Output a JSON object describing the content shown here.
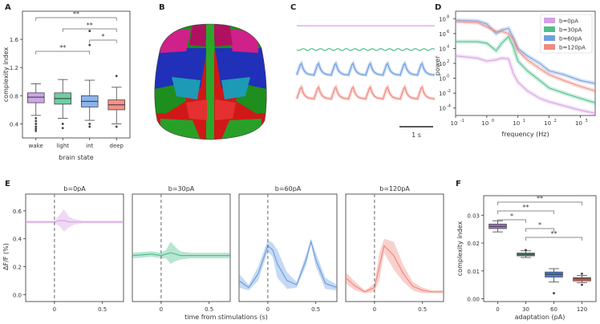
{
  "panel_letters": [
    "A",
    "B",
    "C",
    "D",
    "E",
    "F"
  ],
  "chart_data": [
    {
      "id": "A",
      "type": "box",
      "xlabel": "brain state",
      "ylabel": "complexity index",
      "categories": [
        "wake",
        "light",
        "int",
        "deep"
      ],
      "ylim": [
        0.2,
        2.0
      ],
      "yticks": [
        "0.4",
        "0.8",
        "1.2",
        "1.6"
      ],
      "colors": [
        "#cfa6e8",
        "#6fcfa2",
        "#8bb4ec",
        "#f5908a"
      ],
      "boxes": [
        {
          "q1": 0.7,
          "median": 0.78,
          "q3": 0.84,
          "whislo": 0.52,
          "whishi": 0.97,
          "outliers": [
            0.48,
            0.44,
            0.4,
            0.36,
            0.33,
            0.3
          ]
        },
        {
          "q1": 0.68,
          "median": 0.76,
          "q3": 0.84,
          "whislo": 0.48,
          "whishi": 1.03,
          "outliers": [
            0.4,
            0.34
          ]
        },
        {
          "q1": 0.64,
          "median": 0.72,
          "q3": 0.8,
          "whislo": 0.45,
          "whishi": 1.02,
          "outliers": [
            1.72,
            1.52,
            0.4,
            0.36
          ]
        },
        {
          "q1": 0.6,
          "median": 0.67,
          "q3": 0.74,
          "whislo": 0.4,
          "whishi": 0.92,
          "outliers": [
            1.08,
            0.36
          ]
        }
      ],
      "significance": [
        {
          "from": "wake",
          "to": "deep",
          "label": "**"
        },
        {
          "from": "light",
          "to": "deep",
          "label": "**"
        },
        {
          "from": "int",
          "to": "deep",
          "label": "*"
        },
        {
          "from": "wake",
          "to": "int",
          "label": "**"
        }
      ]
    },
    {
      "id": "C",
      "type": "line",
      "series": [
        {
          "color": "#d6a0e6",
          "pattern": "flat",
          "level": 0.02
        },
        {
          "color": "#4fbf8c",
          "pattern": "small_oscillation",
          "level": 0.3
        },
        {
          "color": "#6f9fe0",
          "pattern": "spiking",
          "level": 0.6
        },
        {
          "color": "#f08a80",
          "pattern": "spiking",
          "level": 0.88
        }
      ],
      "peaks": 8,
      "scalebar_label": "1 s"
    },
    {
      "id": "D",
      "type": "line",
      "log_x": true,
      "log_y": true,
      "xlabel": "frequency (Hz)",
      "ylabel": "power",
      "xticks": [
        "10$^{-1}$",
        "10$^{0}$",
        "10$^{1}$",
        "10$^{2}$",
        "10$^{3}$"
      ],
      "xtick_base": [
        "10",
        "10",
        "10",
        "10",
        "10"
      ],
      "xtick_exp": [
        "-1",
        "0",
        "1",
        "2",
        "3"
      ],
      "ytick_base": [
        "10",
        "10",
        "10",
        "10",
        "10",
        "10",
        "10"
      ],
      "ytick_exp": [
        "8",
        "6",
        "4",
        "2",
        "0",
        "-2",
        "-4"
      ],
      "xlim": [
        0.1,
        3000
      ],
      "ylim": [
        1e-05,
        1000000000
      ],
      "legend_position": "top-right",
      "series": [
        {
          "name": "b=0pA",
          "color": "#d6a0e6",
          "x": [
            0.1,
            0.5,
            1,
            2,
            3,
            5,
            7,
            10,
            20,
            50,
            100,
            300,
            1000,
            3000
          ],
          "y": [
            1000,
            500,
            200,
            300,
            500,
            400,
            5,
            0.3,
            0.02,
            0.002,
            0.0007,
            0.0002,
            5e-05,
            2e-05
          ]
        },
        {
          "name": "b=30pA",
          "color": "#4fbf8c",
          "x": [
            0.1,
            0.5,
            1,
            2,
            3,
            5,
            7,
            10,
            20,
            50,
            100,
            300,
            1000,
            3000
          ],
          "y": [
            80000,
            80000,
            50000,
            5000,
            50000,
            400000,
            20000,
            200,
            10,
            0.5,
            0.05,
            0.01,
            0.002,
            0.0005
          ]
        },
        {
          "name": "b=60pA",
          "color": "#6f9fe0",
          "x": [
            0.1,
            0.5,
            1,
            2,
            3,
            5,
            7,
            10,
            20,
            50,
            100,
            300,
            1000,
            3000
          ],
          "y": [
            60000000,
            50000000,
            20000000,
            1000000,
            3000000,
            5000000,
            300000,
            10000,
            1000,
            100,
            10,
            3,
            0.5,
            0.2
          ]
        },
        {
          "name": "b=120pA",
          "color": "#f08a80",
          "x": [
            0.1,
            0.5,
            1,
            2,
            3,
            5,
            7,
            10,
            20,
            50,
            100,
            300,
            1000,
            3000
          ],
          "y": [
            40000000,
            30000000,
            8000000,
            2000000,
            2000000,
            1000000,
            200000,
            5000,
            300,
            20,
            3,
            0.5,
            0.08,
            0.02
          ]
        }
      ]
    },
    {
      "id": "E",
      "type": "line",
      "xlabel": "time from stimulations (s)",
      "ylabel": "ΔF/F (%)",
      "ylim": [
        -0.05,
        0.72
      ],
      "yticks": [
        "0.0",
        "0.2",
        "0.4",
        "0.6"
      ],
      "xlim": [
        -0.3,
        0.72
      ],
      "xticks": [
        "0",
        "0.5"
      ],
      "subplots": [
        {
          "title": "b=0pA",
          "color": "#d6a0e6",
          "x": [
            -0.3,
            0,
            0.05,
            0.1,
            0.15,
            0.2,
            0.3,
            0.5,
            0.72
          ],
          "y": [
            0.52,
            0.52,
            0.53,
            0.53,
            0.52,
            0.52,
            0.52,
            0.52,
            0.52
          ],
          "spread": [
            0.01,
            0.01,
            0.04,
            0.08,
            0.04,
            0.02,
            0.01,
            0.01,
            0.01
          ]
        },
        {
          "title": "b=30pA",
          "color": "#4fbf8c",
          "x": [
            -0.3,
            -0.1,
            0,
            0.05,
            0.1,
            0.15,
            0.2,
            0.3,
            0.5,
            0.72
          ],
          "y": [
            0.28,
            0.29,
            0.28,
            0.29,
            0.3,
            0.29,
            0.28,
            0.28,
            0.28,
            0.28
          ],
          "spread": [
            0.02,
            0.02,
            0.02,
            0.03,
            0.08,
            0.05,
            0.03,
            0.02,
            0.02,
            0.02
          ]
        },
        {
          "title": "b=60pA",
          "color": "#6f9fe0",
          "x": [
            -0.3,
            -0.2,
            -0.1,
            0,
            0.05,
            0.1,
            0.2,
            0.3,
            0.4,
            0.45,
            0.5,
            0.6,
            0.72
          ],
          "y": [
            0.1,
            0.05,
            0.15,
            0.35,
            0.32,
            0.22,
            0.1,
            0.07,
            0.25,
            0.38,
            0.25,
            0.08,
            0.05
          ],
          "spread": [
            0.05,
            0.02,
            0.05,
            0.04,
            0.05,
            0.1,
            0.06,
            0.02,
            0.04,
            0.02,
            0.05,
            0.04,
            0.02
          ]
        },
        {
          "title": "b=120pA",
          "color": "#f08a80",
          "x": [
            -0.3,
            -0.2,
            -0.1,
            0,
            0.05,
            0.1,
            0.2,
            0.3,
            0.4,
            0.5,
            0.6,
            0.72
          ],
          "y": [
            0.12,
            0.06,
            0.02,
            0.05,
            0.2,
            0.35,
            0.28,
            0.15,
            0.06,
            0.03,
            0.02,
            0.02
          ],
          "spread": [
            0.04,
            0.03,
            0.01,
            0.03,
            0.1,
            0.05,
            0.1,
            0.06,
            0.03,
            0.02,
            0.01,
            0.01
          ]
        }
      ]
    },
    {
      "id": "F",
      "type": "box",
      "xlabel": "adaptation (pA)",
      "ylabel": "complexity index",
      "categories": [
        "0",
        "30",
        "60",
        "120"
      ],
      "ylim": [
        -0.001,
        0.037
      ],
      "yticks": [
        "0.00",
        "0.01",
        "0.02",
        "0.03"
      ],
      "colors": [
        "#a57cc8",
        "#3aa37a",
        "#4a7fd0",
        "#e06b60"
      ],
      "boxes": [
        {
          "q1": 0.0252,
          "median": 0.026,
          "q3": 0.0268,
          "whislo": 0.024,
          "whishi": 0.028,
          "outliers": []
        },
        {
          "q1": 0.0154,
          "median": 0.0159,
          "q3": 0.0164,
          "whislo": 0.0148,
          "whishi": 0.0172,
          "outliers": [
            0.0175
          ]
        },
        {
          "q1": 0.0078,
          "median": 0.0088,
          "q3": 0.0096,
          "whislo": 0.006,
          "whishi": 0.0108,
          "outliers": [
            0.002
          ]
        },
        {
          "q1": 0.0064,
          "median": 0.0071,
          "q3": 0.0076,
          "whislo": 0.0058,
          "whishi": 0.0084,
          "outliers": [
            0.009,
            0.005
          ]
        }
      ],
      "significance": [
        {
          "from": "0",
          "to": "120",
          "label": "**"
        },
        {
          "from": "0",
          "to": "60",
          "label": "**"
        },
        {
          "from": "0",
          "to": "30",
          "label": "*"
        },
        {
          "from": "30",
          "to": "60",
          "label": "*"
        },
        {
          "from": "30",
          "to": "120",
          "label": "**"
        }
      ]
    }
  ]
}
